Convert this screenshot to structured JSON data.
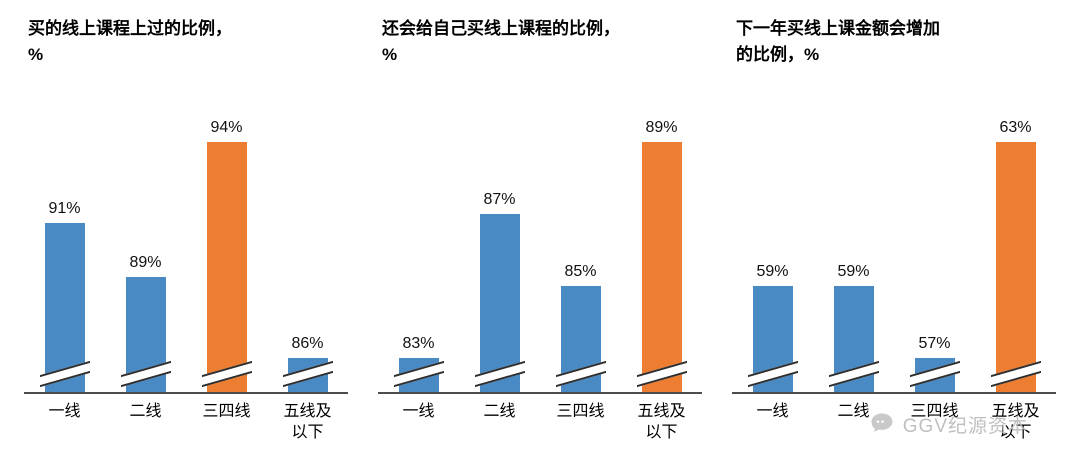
{
  "colors": {
    "bar_blue": "#4A8AC4",
    "bar_orange": "#ED7D31",
    "axis": "#4d4d4d",
    "watermark": "#b9b9b9"
  },
  "watermark": {
    "label": "GGV纪源资本",
    "icon": "chat-bubble-icon"
  },
  "chart_data": [
    {
      "type": "bar",
      "title": "买的线上课程上过的比例，\n%",
      "unit": "%",
      "categories": [
        "一线",
        "二线",
        "三四线",
        "五线及以下"
      ],
      "values": [
        91,
        89,
        94,
        86
      ],
      "data_labels": [
        "91%",
        "89%",
        "94%",
        "86%"
      ],
      "highlight_index": 2,
      "axis_break": true,
      "y_axis": {
        "visible": false,
        "truncated": true
      },
      "legend": "none",
      "grid": "off"
    },
    {
      "type": "bar",
      "title": "还会给自己买线上课程的比例，\n%",
      "unit": "%",
      "categories": [
        "一线",
        "二线",
        "三四线",
        "五线及以下"
      ],
      "values": [
        83,
        87,
        85,
        89
      ],
      "data_labels": [
        "83%",
        "87%",
        "85%",
        "89%"
      ],
      "highlight_index": 3,
      "axis_break": true,
      "y_axis": {
        "visible": false,
        "truncated": true
      },
      "legend": "none",
      "grid": "off"
    },
    {
      "type": "bar",
      "title": "下一年买线上课金额会增加\n的比例，%",
      "unit": "%",
      "categories": [
        "一线",
        "二线",
        "三四线",
        "五线及以下"
      ],
      "values": [
        59,
        59,
        57,
        63
      ],
      "data_labels": [
        "59%",
        "59%",
        "57%",
        "63%"
      ],
      "highlight_index": 3,
      "axis_break": true,
      "y_axis": {
        "visible": false,
        "truncated": true
      },
      "legend": "none",
      "grid": "off"
    }
  ]
}
